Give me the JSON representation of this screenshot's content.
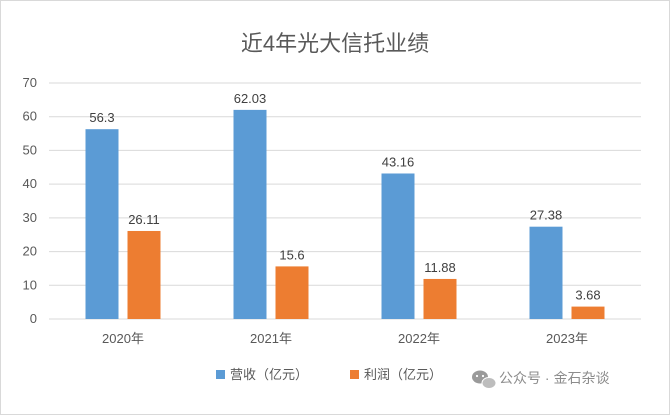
{
  "chart_data": {
    "type": "bar",
    "title": "近4年光大信托业绩",
    "categories": [
      "2020年",
      "2021年",
      "2022年",
      "2023年"
    ],
    "series": [
      {
        "name": "营收（亿元）",
        "values": [
          56.3,
          62.03,
          43.16,
          27.38
        ],
        "color": "#5b9bd5"
      },
      {
        "name": "利润（亿元）",
        "values": [
          26.11,
          15.6,
          11.88,
          3.68
        ],
        "color": "#ed7d31"
      }
    ],
    "xlabel": "",
    "ylabel": "",
    "ylim": [
      0,
      70
    ],
    "yticks": [
      0,
      10,
      20,
      30,
      40,
      50,
      60,
      70
    ],
    "grid": true,
    "legend_position": "bottom"
  },
  "watermark": {
    "text": "公众号 · 金石杂谈",
    "icon": "wechat-icon"
  }
}
